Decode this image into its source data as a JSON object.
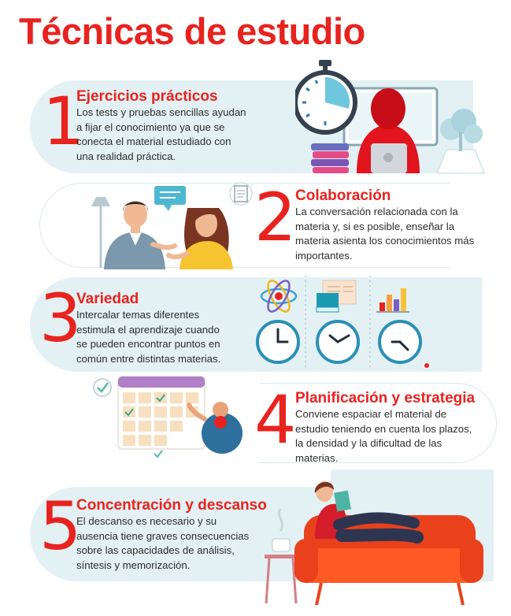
{
  "title": "Técnicas de estudio",
  "sections": [
    {
      "number": "1",
      "heading": "Ejercicios prácticos",
      "lines": [
        "Los tests y pruebas sencillas ayudan",
        "a fijar el conocimiento ya que se",
        "conecta el material estudiado con",
        "una realidad práctica."
      ]
    },
    {
      "number": "2",
      "heading": "Colaboración",
      "lines": [
        "La conversación relacionada con la",
        "materia y, si es posible, enseñar la",
        "materia asienta los conocimientos más",
        "importantes."
      ]
    },
    {
      "number": "3",
      "heading": "Variedad",
      "lines": [
        "Intercalar temas diferentes",
        "estimula el aprendizaje cuando",
        "se pueden encontrar puntos en",
        "común entre distintas materias."
      ]
    },
    {
      "number": "4",
      "heading": "Planificación y estrategia",
      "lines": [
        "Conviene espaciar el material de",
        "estudio teniendo en cuenta los plazos,",
        "la densidad y la dificultad de las",
        "materias."
      ]
    },
    {
      "number": "5",
      "heading": "Concentración y descanso",
      "lines": [
        "El descanso es necesario y su",
        "ausencia tiene graves consecuencias",
        "sobre las capacidades de análisis,",
        "síntesis y memorización."
      ]
    }
  ],
  "colors": {
    "accent": "#e8231f",
    "band": "#e3f1f4",
    "teal": "#2aa6b6",
    "skin": "#f0b893",
    "text": "#2c2c2c"
  },
  "icons": [
    "stopwatch-icon",
    "laptop-icon",
    "books-icon",
    "plant-icon",
    "chat-bubble-icon",
    "document-icon",
    "atom-icon",
    "book-icon",
    "bar-chart-icon",
    "clock-icon",
    "calendar-icon",
    "check-icon",
    "sofa-icon",
    "lamp-icon"
  ]
}
